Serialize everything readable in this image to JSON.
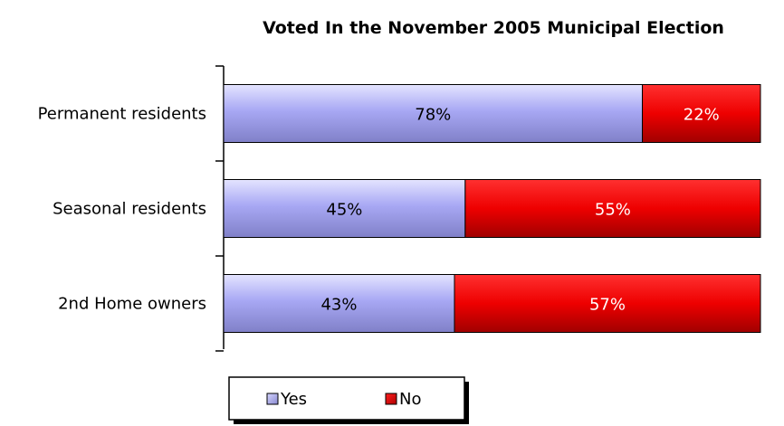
{
  "chart_data": {
    "type": "bar",
    "orientation": "horizontal",
    "stacked": "percent",
    "title": "Voted In the November 2005 Municipal Election",
    "categories": [
      "Permanent residents",
      "Seasonal residents",
      "2nd Home owners"
    ],
    "series": [
      {
        "name": "Yes",
        "values": [
          78,
          45,
          43
        ],
        "labels": [
          "78%",
          "45%",
          "43%"
        ],
        "color": "#9999ff",
        "label_color": "#000000"
      },
      {
        "name": "No",
        "values": [
          22,
          55,
          57
        ],
        "labels": [
          "22%",
          "55%",
          "57%"
        ],
        "color": "#ff0000",
        "label_color": "#ffffff"
      }
    ],
    "xlim": [
      0,
      100
    ],
    "grid": false,
    "legend_position": "bottom"
  }
}
